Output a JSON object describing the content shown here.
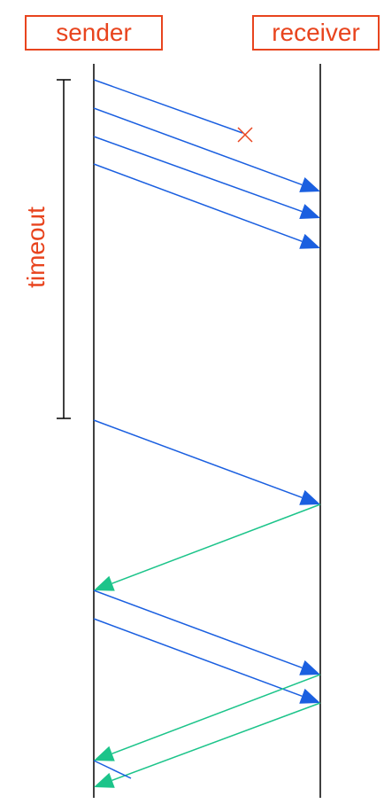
{
  "nodes": {
    "sender": "sender",
    "receiver": "receiver"
  },
  "timeout_label": "timeout",
  "colors": {
    "label": "#e8441e",
    "data_packet": "#1a5fe0",
    "ack": "#1cc48a",
    "timeline": "#000000",
    "loss_marker": "#e8441e"
  }
}
